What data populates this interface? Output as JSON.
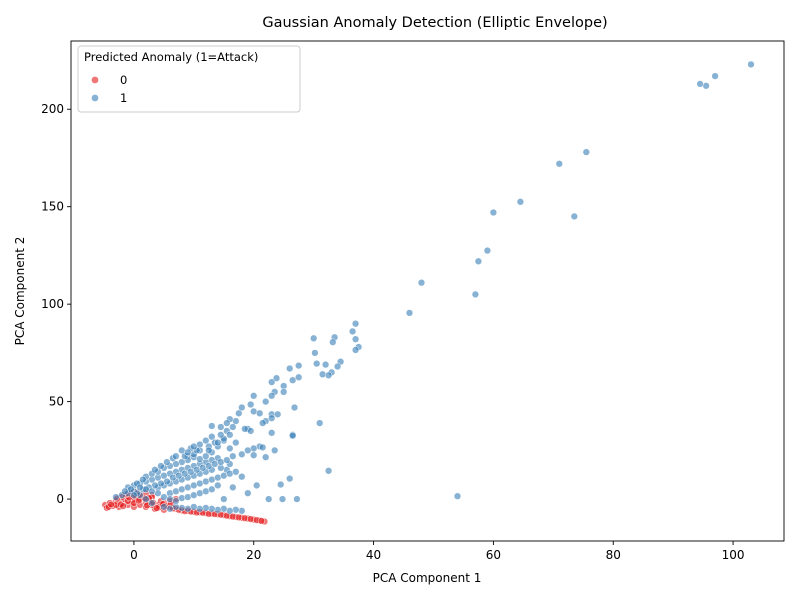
{
  "chart_data": {
    "type": "scatter",
    "title": "Gaussian Anomaly Detection (Elliptic Envelope)",
    "xlabel": "PCA Component 1",
    "ylabel": "PCA Component 2",
    "xlim": [
      -10.5,
      108.5
    ],
    "ylim": [
      -21.5,
      235
    ],
    "xticks": [
      0,
      20,
      40,
      60,
      80,
      100
    ],
    "yticks": [
      0,
      50,
      100,
      150,
      200
    ],
    "grid": false,
    "legend": {
      "title": "Predicted Anomaly (1=Attack)",
      "placement": "top-left",
      "entries": [
        "0",
        "1"
      ]
    },
    "colors": {
      "0": "#e41a1c",
      "1": "#377eb8"
    },
    "series": [
      {
        "name": "0",
        "points": [
          [
            -4.8,
            -3
          ],
          [
            -4.5,
            -4.5
          ],
          [
            -4,
            -2
          ],
          [
            -3.5,
            -3.5
          ],
          [
            -3,
            -1
          ],
          [
            -2.5,
            -4
          ],
          [
            -2,
            -2
          ],
          [
            -1.5,
            0
          ],
          [
            -1.2,
            1.5
          ],
          [
            -1,
            -3
          ],
          [
            -0.5,
            3
          ],
          [
            -0.3,
            -1.5
          ],
          [
            0,
            -4
          ],
          [
            0.2,
            0
          ],
          [
            0.5,
            2
          ],
          [
            1,
            -3
          ],
          [
            1.5,
            1
          ],
          [
            2,
            -4
          ],
          [
            2.5,
            -1
          ],
          [
            3,
            2
          ],
          [
            3.5,
            -5
          ],
          [
            4,
            -3
          ],
          [
            4.5,
            -1
          ],
          [
            5,
            -5.5
          ],
          [
            6,
            -4
          ],
          [
            7,
            -5
          ],
          [
            8,
            -5.8
          ],
          [
            9,
            -6
          ],
          [
            10,
            -6.5
          ],
          [
            11,
            -6.8
          ],
          [
            12,
            -7.2
          ],
          [
            13,
            -7.5
          ],
          [
            14,
            -7.8
          ],
          [
            15,
            -8.2
          ],
          [
            16,
            -8.8
          ],
          [
            17,
            -9.2
          ],
          [
            18,
            -9.6
          ],
          [
            19,
            -10
          ],
          [
            20,
            -10.5
          ],
          [
            21,
            -11
          ],
          [
            21.8,
            -11.5
          ],
          [
            1,
            0
          ],
          [
            2,
            -1.5
          ],
          [
            3,
            -3
          ],
          [
            -2,
            1
          ],
          [
            -3,
            -3
          ],
          [
            0,
            1
          ],
          [
            6,
            -1
          ],
          [
            7,
            0
          ],
          [
            5,
            -2
          ],
          [
            2,
            3
          ],
          [
            3,
            1
          ],
          [
            0,
            -2
          ],
          [
            -1,
            -1
          ],
          [
            1,
            2
          ],
          [
            2.5,
            0.5
          ],
          [
            -2.2,
            -2.8
          ],
          [
            4.2,
            -4.2
          ],
          [
            5.5,
            -3.5
          ],
          [
            6.5,
            -4.8
          ],
          [
            7.5,
            -5.5
          ],
          [
            8.5,
            -6.2
          ],
          [
            9.5,
            -6.4
          ],
          [
            10.5,
            -6.9
          ],
          [
            11.5,
            -7
          ],
          [
            12.5,
            -7.6
          ],
          [
            13.5,
            -7.7
          ],
          [
            14.5,
            -8
          ],
          [
            15.5,
            -8.5
          ],
          [
            16.5,
            -9
          ],
          [
            17.5,
            -9.4
          ],
          [
            18.5,
            -9.8
          ],
          [
            19.5,
            -10.2
          ],
          [
            20.5,
            -10.8
          ],
          [
            21.3,
            -11.2
          ],
          [
            -4.2,
            -4
          ],
          [
            -3.8,
            -2.8
          ],
          [
            -1.8,
            -3.6
          ],
          [
            -0.8,
            0.8
          ],
          [
            0.8,
            -0.8
          ],
          [
            1.8,
            0.4
          ],
          [
            3.2,
            -1.8
          ],
          [
            4.8,
            -2.6
          ],
          [
            -2.8,
            0.2
          ],
          [
            -1.4,
            2.4
          ],
          [
            0.4,
            3.6
          ],
          [
            2.2,
            -3.2
          ],
          [
            3.8,
            -4.6
          ],
          [
            6.2,
            -2.2
          ]
        ]
      },
      {
        "name": "1",
        "points": [
          [
            103,
            223
          ],
          [
            97,
            217
          ],
          [
            95.5,
            212
          ],
          [
            94.5,
            213
          ],
          [
            75.5,
            178
          ],
          [
            71,
            172
          ],
          [
            64.5,
            152.5
          ],
          [
            60,
            147
          ],
          [
            73.5,
            145
          ],
          [
            59,
            127.5
          ],
          [
            57.5,
            122
          ],
          [
            48,
            111
          ],
          [
            57,
            105
          ],
          [
            46,
            95.5
          ],
          [
            37,
            90
          ],
          [
            30,
            82.5
          ],
          [
            36.5,
            86
          ],
          [
            37,
            82
          ],
          [
            33.5,
            83
          ],
          [
            33.2,
            80.5
          ],
          [
            37.5,
            78
          ],
          [
            37,
            76.5
          ],
          [
            34.5,
            70.5
          ],
          [
            34,
            68
          ],
          [
            30.2,
            75
          ],
          [
            31.5,
            64
          ],
          [
            32,
            69
          ],
          [
            33,
            65
          ],
          [
            32.5,
            63.5
          ],
          [
            27.5,
            68.5
          ],
          [
            26,
            67
          ],
          [
            30.5,
            69.5
          ],
          [
            27.5,
            62.5
          ],
          [
            26.5,
            61
          ],
          [
            23.8,
            62
          ],
          [
            23,
            60
          ],
          [
            25,
            58
          ],
          [
            25,
            55
          ],
          [
            23.5,
            55
          ],
          [
            23,
            53
          ],
          [
            26.8,
            47
          ],
          [
            20,
            53
          ],
          [
            19.5,
            48.5
          ],
          [
            18,
            47
          ],
          [
            22,
            50
          ],
          [
            17.5,
            44
          ],
          [
            20,
            45
          ],
          [
            21,
            44
          ],
          [
            23,
            43.5
          ],
          [
            24,
            43.5
          ],
          [
            23,
            41.5
          ],
          [
            22,
            40
          ],
          [
            21.5,
            39
          ],
          [
            17,
            40
          ],
          [
            16,
            41
          ],
          [
            15.5,
            39
          ],
          [
            14.5,
            37
          ],
          [
            13,
            37.5
          ],
          [
            16.5,
            37
          ],
          [
            19,
            36
          ],
          [
            19.5,
            35
          ],
          [
            18.5,
            36
          ],
          [
            23,
            34
          ],
          [
            15.5,
            35
          ],
          [
            26.5,
            33
          ],
          [
            26.5,
            32.5
          ],
          [
            31,
            39
          ],
          [
            15,
            30
          ],
          [
            17,
            29
          ],
          [
            16,
            26
          ],
          [
            21,
            27
          ],
          [
            21.5,
            26.5
          ],
          [
            23.5,
            25
          ],
          [
            20,
            26
          ],
          [
            19,
            25
          ],
          [
            18,
            23
          ],
          [
            20,
            22.5
          ],
          [
            22,
            21.5
          ],
          [
            16.5,
            22
          ],
          [
            14,
            21
          ],
          [
            13,
            20
          ],
          [
            12,
            19
          ],
          [
            11,
            18
          ],
          [
            10,
            17
          ],
          [
            9,
            16
          ],
          [
            8,
            15
          ],
          [
            7,
            14
          ],
          [
            6,
            13
          ],
          [
            5,
            12
          ],
          [
            4,
            11
          ],
          [
            3,
            10
          ],
          [
            2,
            9
          ],
          [
            1,
            8
          ],
          [
            0,
            7
          ],
          [
            -1,
            6
          ],
          [
            15.5,
            15
          ],
          [
            16,
            18
          ],
          [
            14.5,
            16
          ],
          [
            18,
            11.5
          ],
          [
            26,
            10.5
          ],
          [
            24.5,
            7.5
          ],
          [
            32.5,
            14.5
          ],
          [
            19,
            3
          ],
          [
            16.5,
            6
          ],
          [
            20.5,
            7
          ],
          [
            14,
            7
          ],
          [
            15,
            0
          ],
          [
            22.5,
            0
          ],
          [
            24.8,
            0
          ],
          [
            27.2,
            0
          ],
          [
            54,
            1.5
          ],
          [
            18,
            -6
          ],
          [
            17,
            -5.5
          ],
          [
            16,
            -6
          ],
          [
            15,
            -5
          ],
          [
            14,
            -5.5
          ],
          [
            13,
            -5
          ],
          [
            12,
            -4.5
          ],
          [
            11,
            -5
          ],
          [
            10,
            -4
          ],
          [
            9,
            -5
          ],
          [
            8,
            -4.5
          ],
          [
            7,
            -4
          ],
          [
            6,
            -5
          ],
          [
            5,
            -4
          ],
          [
            3,
            -2
          ],
          [
            2,
            0
          ],
          [
            1,
            2
          ],
          [
            0,
            4
          ],
          [
            -1,
            3
          ],
          [
            -2,
            2
          ],
          [
            -3,
            1
          ],
          [
            4,
            6
          ],
          [
            5,
            7
          ],
          [
            6,
            8
          ],
          [
            7,
            9
          ],
          [
            8,
            10
          ],
          [
            9,
            11
          ],
          [
            10,
            12
          ],
          [
            11,
            13
          ],
          [
            12,
            14
          ],
          [
            13,
            15
          ],
          [
            9.5,
            26
          ],
          [
            8,
            25
          ],
          [
            9,
            22
          ],
          [
            10,
            21.5
          ],
          [
            11,
            20.5
          ],
          [
            12,
            22
          ],
          [
            13,
            24
          ],
          [
            14,
            27
          ],
          [
            13.5,
            29
          ],
          [
            12.5,
            27
          ],
          [
            11,
            25
          ],
          [
            10,
            23
          ],
          [
            9,
            20
          ],
          [
            8,
            19
          ],
          [
            7,
            18
          ],
          [
            6,
            17
          ],
          [
            5,
            16
          ],
          [
            4,
            14
          ],
          [
            3,
            13
          ],
          [
            2,
            11.5
          ],
          [
            1.5,
            10
          ],
          [
            0.5,
            8
          ],
          [
            -0.5,
            5
          ],
          [
            -1.5,
            4
          ],
          [
            6.5,
            11
          ],
          [
            7.5,
            12
          ],
          [
            8.5,
            13
          ],
          [
            9.5,
            14
          ],
          [
            10.5,
            15
          ],
          [
            11.5,
            16
          ],
          [
            12.5,
            17
          ],
          [
            13.5,
            18
          ],
          [
            14.5,
            19
          ],
          [
            15.5,
            20
          ],
          [
            5.5,
            9
          ],
          [
            4.5,
            8
          ],
          [
            3.5,
            7
          ],
          [
            2.5,
            6
          ],
          [
            1.5,
            5
          ],
          [
            0.5,
            3
          ],
          [
            6,
            3
          ],
          [
            7,
            4
          ],
          [
            8,
            5
          ],
          [
            9,
            6
          ],
          [
            10,
            7
          ],
          [
            11,
            8
          ],
          [
            12,
            9
          ],
          [
            13,
            10
          ],
          [
            14,
            11
          ],
          [
            15,
            12
          ],
          [
            16,
            13
          ],
          [
            17,
            14
          ],
          [
            5,
            1
          ],
          [
            6,
            0
          ],
          [
            7,
            -1
          ],
          [
            8,
            0.5
          ],
          [
            9,
            1
          ],
          [
            10,
            2
          ],
          [
            11,
            3
          ],
          [
            12,
            4
          ],
          [
            13,
            5
          ],
          [
            4,
            3
          ],
          [
            3,
            4
          ],
          [
            2,
            5
          ],
          [
            1,
            6
          ],
          [
            0,
            2
          ],
          [
            6.5,
            21
          ],
          [
            7,
            22
          ],
          [
            5.5,
            19
          ],
          [
            4.5,
            17
          ],
          [
            3.5,
            15
          ],
          [
            8.5,
            22
          ],
          [
            10.5,
            25
          ],
          [
            12.5,
            25
          ],
          [
            14,
            29
          ],
          [
            15,
            31
          ],
          [
            16,
            33
          ],
          [
            12,
            30
          ],
          [
            14.5,
            33
          ],
          [
            13,
            32
          ],
          [
            11,
            28
          ],
          [
            10,
            27
          ],
          [
            9,
            24
          ]
        ]
      }
    ]
  }
}
